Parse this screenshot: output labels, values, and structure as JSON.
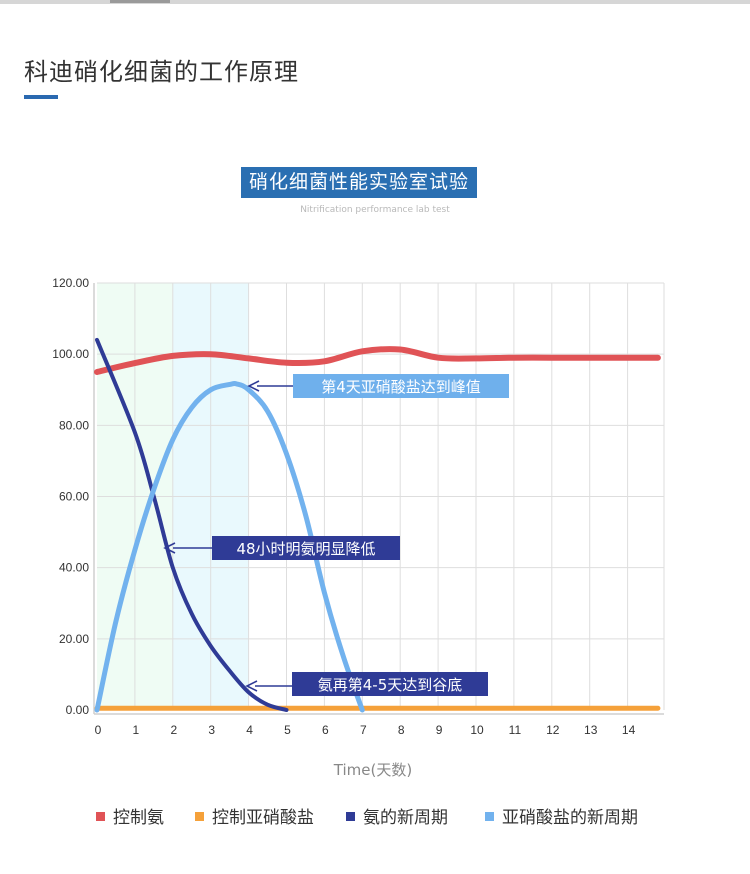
{
  "page": {
    "title": "科迪硝化细菌的工作原理"
  },
  "colors": {
    "accent": "#2a69b0",
    "control_ammonia": "#e05356",
    "control_nitrite": "#f5a13a",
    "ammonia": "#2f3b96",
    "nitrite": "#72b2ee"
  },
  "chart_data": {
    "type": "line",
    "title": "硝化细菌性能实验室试验",
    "subtitle": "Nitrification performance lab test",
    "xlabel": "Time(天数)",
    "ylabel": "",
    "xlim": [
      0,
      15
    ],
    "ylim": [
      0,
      120
    ],
    "x_ticks": [
      0,
      1,
      2,
      3,
      4,
      5,
      6,
      7,
      8,
      9,
      10,
      11,
      12,
      13,
      14
    ],
    "y_ticks": [
      "0.00",
      "20.00",
      "40.00",
      "60.00",
      "80.00",
      "100.00",
      "120.00"
    ],
    "grid": true,
    "legend_position": "bottom",
    "shaded_regions": [
      {
        "x": [
          0,
          2
        ],
        "color": "#effcf4"
      },
      {
        "x": [
          2,
          4
        ],
        "color": "#e9f9fd"
      }
    ],
    "series": [
      {
        "name": "控制氨",
        "color": "#e05356",
        "x": [
          0,
          1,
          2,
          3,
          4,
          5,
          6,
          7,
          8,
          9,
          10,
          11,
          12,
          13,
          14,
          14.8
        ],
        "y": [
          95,
          97.5,
          99.5,
          100,
          98.8,
          97.6,
          98,
          100.8,
          101.3,
          99,
          98.8,
          99,
          99,
          99,
          99,
          99
        ]
      },
      {
        "name": "控制亚硝酸盐",
        "color": "#f5a13a",
        "x": [
          0,
          14.8
        ],
        "y": [
          0.5,
          0.5
        ]
      },
      {
        "name": "氨的新周期",
        "color": "#2f3b96",
        "x": [
          0,
          1,
          1.5,
          2,
          2.5,
          3,
          3.5,
          4,
          4.5,
          5
        ],
        "y": [
          104,
          78,
          60,
          40,
          27,
          18,
          11,
          5,
          1.5,
          0
        ]
      },
      {
        "name": "亚硝酸盐的新周期",
        "color": "#72b2ee",
        "x": [
          0,
          0.5,
          1,
          1.5,
          2,
          2.5,
          3,
          3.5,
          3.7,
          4,
          4.5,
          5,
          5.5,
          6,
          6.5,
          7
        ],
        "y": [
          0,
          25,
          45,
          62,
          76,
          85,
          90,
          91.5,
          91.6,
          90,
          84,
          72,
          55,
          33,
          15,
          0
        ]
      }
    ],
    "annotations": [
      {
        "text": "第4天亚硝酸盐达到峰值",
        "x": 4.0,
        "y": 88
      },
      {
        "text": "48小时明氨明显降低",
        "x": 1.9,
        "y": 44
      },
      {
        "text": "氨再第4-5天达到谷底",
        "x": 4.0,
        "y": 6
      }
    ]
  }
}
